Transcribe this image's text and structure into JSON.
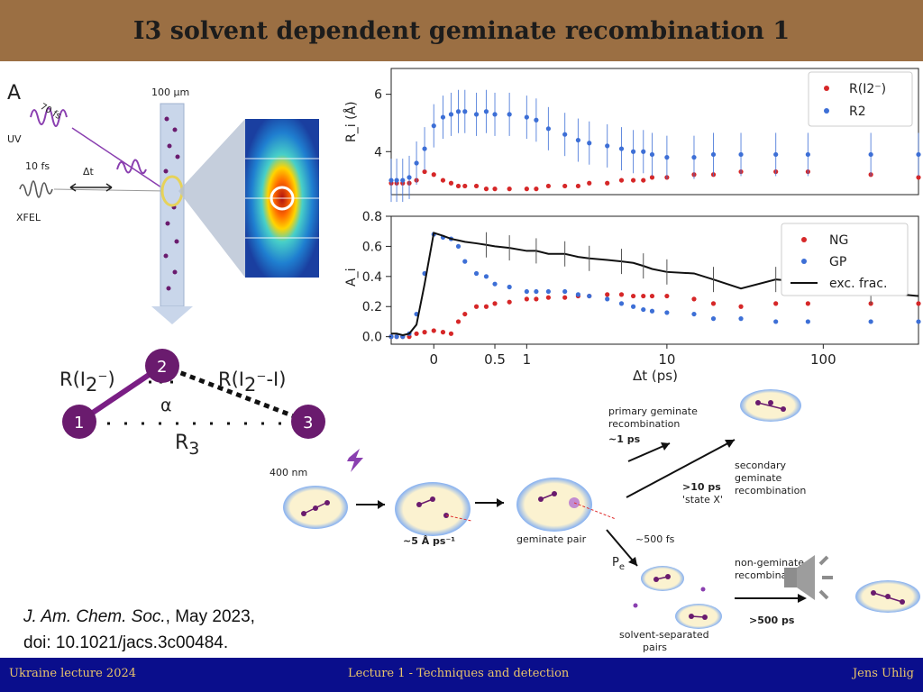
{
  "slide": {
    "title": "I3 solvent dependent geminate recombination 1",
    "citation_journal": "J. Am. Chem. Soc.",
    "citation_date": ", May 2023,",
    "citation_doi": "doi: 10.1021/jacs.3c00484."
  },
  "footer": {
    "left": "Ukraine lecture 2024",
    "center": "Lecture 1 - Techniques and detection",
    "right": "Jens Uhlig"
  },
  "setup": {
    "panel_letter": "A",
    "uv_label": "UV",
    "uv_duration": "70 fs",
    "xfel_label": "XFEL",
    "xfel_duration": "10 fs",
    "delay_label": "Δt",
    "jet_width": "100 μm"
  },
  "molecule": {
    "atom1": "1",
    "atom2": "2",
    "atom3": "3",
    "bond_r12_prefix": "R(I",
    "bond_r12_sub": "2",
    "bond_r12_suffix": "⁻)",
    "bond_r23_prefix": "R(I",
    "bond_r23_sub": "2",
    "bond_r23_suffix": "⁻-I)",
    "angle_label": "α",
    "r3_main": "R",
    "r3_sub": "3"
  },
  "scheme": {
    "pump": "400 nm",
    "speed": "~5 Å ps⁻¹",
    "geminate_pair": "geminate pair",
    "primary_line1": "primary geminate",
    "primary_line2": "recombination",
    "primary_time": "~1 ps",
    "secondary_line1": "secondary",
    "secondary_line2": "geminate",
    "secondary_line3": "recombination",
    "state_time": ">10 ps",
    "state_label": "'state X'",
    "escape_time": "~500 fs",
    "pe_main": "P",
    "pe_sub": "e",
    "nongeminate_line1": "non-geminate",
    "nongeminate_line2": "recombination",
    "nongeminate_time": ">500 ps",
    "ssp_line1": "solvent-separated",
    "ssp_line2": "pairs"
  },
  "colors": {
    "title_bar": "#9b6f43",
    "footer_bar": "#0a0e8c",
    "footer_text": "#e9c46b",
    "red_series": "#d62728",
    "blue_series": "#3d6fd6",
    "atom_purple": "#6a1b6e"
  },
  "chart_data": [
    {
      "type": "scatter",
      "title": "",
      "xlabel": "",
      "ylabel": "R_i (Å)",
      "x_scale": "symlog",
      "ylim": [
        2.5,
        6.9
      ],
      "y_ticks": [
        4,
        6
      ],
      "x": [
        -0.3,
        -0.25,
        -0.2,
        -0.15,
        -0.1,
        -0.05,
        0.0,
        0.05,
        0.1,
        0.15,
        0.2,
        0.3,
        0.4,
        0.5,
        0.7,
        1.0,
        1.2,
        1.5,
        2.0,
        2.5,
        3.0,
        4.0,
        5.0,
        6.0,
        7.0,
        8.0,
        10,
        15,
        20,
        30,
        50,
        80,
        200,
        400
      ],
      "series": [
        {
          "name": "R(I2⁻)",
          "color": "red",
          "values": [
            2.9,
            2.9,
            2.9,
            2.9,
            3.0,
            3.3,
            3.2,
            3.0,
            2.9,
            2.8,
            2.8,
            2.8,
            2.7,
            2.7,
            2.7,
            2.7,
            2.7,
            2.8,
            2.8,
            2.8,
            2.9,
            2.9,
            3.0,
            3.0,
            3.0,
            3.1,
            3.1,
            3.2,
            3.2,
            3.3,
            3.3,
            3.3,
            3.2,
            3.1
          ]
        },
        {
          "name": "R2",
          "color": "blue",
          "values": [
            3.0,
            3.0,
            3.0,
            3.1,
            3.6,
            4.1,
            4.9,
            5.2,
            5.3,
            5.4,
            5.4,
            5.3,
            5.4,
            5.3,
            5.3,
            5.2,
            5.1,
            4.8,
            4.6,
            4.4,
            4.3,
            4.2,
            4.1,
            4.0,
            4.0,
            3.9,
            3.8,
            3.8,
            3.9,
            3.9,
            3.9,
            3.9,
            3.9,
            3.9
          ]
        }
      ]
    },
    {
      "type": "scatter",
      "title": "",
      "xlabel": "Δt (ps)",
      "ylabel": "A_i",
      "x_scale": "symlog",
      "ylim": [
        -0.05,
        0.8
      ],
      "y_ticks": [
        0.0,
        0.2,
        0.4,
        0.6,
        0.8
      ],
      "x_ticks": [
        0,
        0.5,
        1,
        10,
        100
      ],
      "x_tick_labels": [
        "0",
        "0.5",
        "1",
        "10",
        "100"
      ],
      "x": [
        -0.3,
        -0.25,
        -0.2,
        -0.15,
        -0.1,
        -0.05,
        0.0,
        0.05,
        0.1,
        0.15,
        0.2,
        0.3,
        0.4,
        0.5,
        0.7,
        1.0,
        1.2,
        1.5,
        2.0,
        2.5,
        3.0,
        4.0,
        5.0,
        6.0,
        7.0,
        8.0,
        10,
        15,
        20,
        30,
        50,
        80,
        200,
        400
      ],
      "series": [
        {
          "name": "NG",
          "color": "red",
          "values": [
            0.0,
            0.0,
            0.0,
            0.0,
            0.02,
            0.03,
            0.04,
            0.03,
            0.02,
            0.1,
            0.15,
            0.2,
            0.2,
            0.22,
            0.23,
            0.25,
            0.25,
            0.26,
            0.26,
            0.27,
            0.27,
            0.28,
            0.28,
            0.27,
            0.27,
            0.27,
            0.27,
            0.25,
            0.22,
            0.2,
            0.22,
            0.22,
            0.22,
            0.22
          ]
        },
        {
          "name": "GP",
          "color": "blue",
          "values": [
            0.0,
            0.0,
            0.0,
            0.02,
            0.15,
            0.42,
            0.68,
            0.66,
            0.65,
            0.6,
            0.5,
            0.42,
            0.4,
            0.35,
            0.33,
            0.3,
            0.3,
            0.3,
            0.3,
            0.28,
            0.27,
            0.25,
            0.22,
            0.2,
            0.18,
            0.17,
            0.16,
            0.15,
            0.12,
            0.12,
            0.1,
            0.1,
            0.1,
            0.1
          ]
        },
        {
          "name": "exc. frac.",
          "color": "black",
          "values": [
            0.02,
            0.02,
            0.01,
            0.02,
            0.08,
            0.35,
            0.69,
            0.67,
            0.65,
            0.64,
            0.63,
            0.62,
            0.61,
            0.6,
            0.59,
            0.57,
            0.57,
            0.55,
            0.55,
            0.53,
            0.52,
            0.51,
            0.5,
            0.49,
            0.47,
            0.45,
            0.43,
            0.42,
            0.38,
            0.32,
            0.38,
            0.36,
            0.3,
            0.27
          ]
        }
      ]
    }
  ]
}
